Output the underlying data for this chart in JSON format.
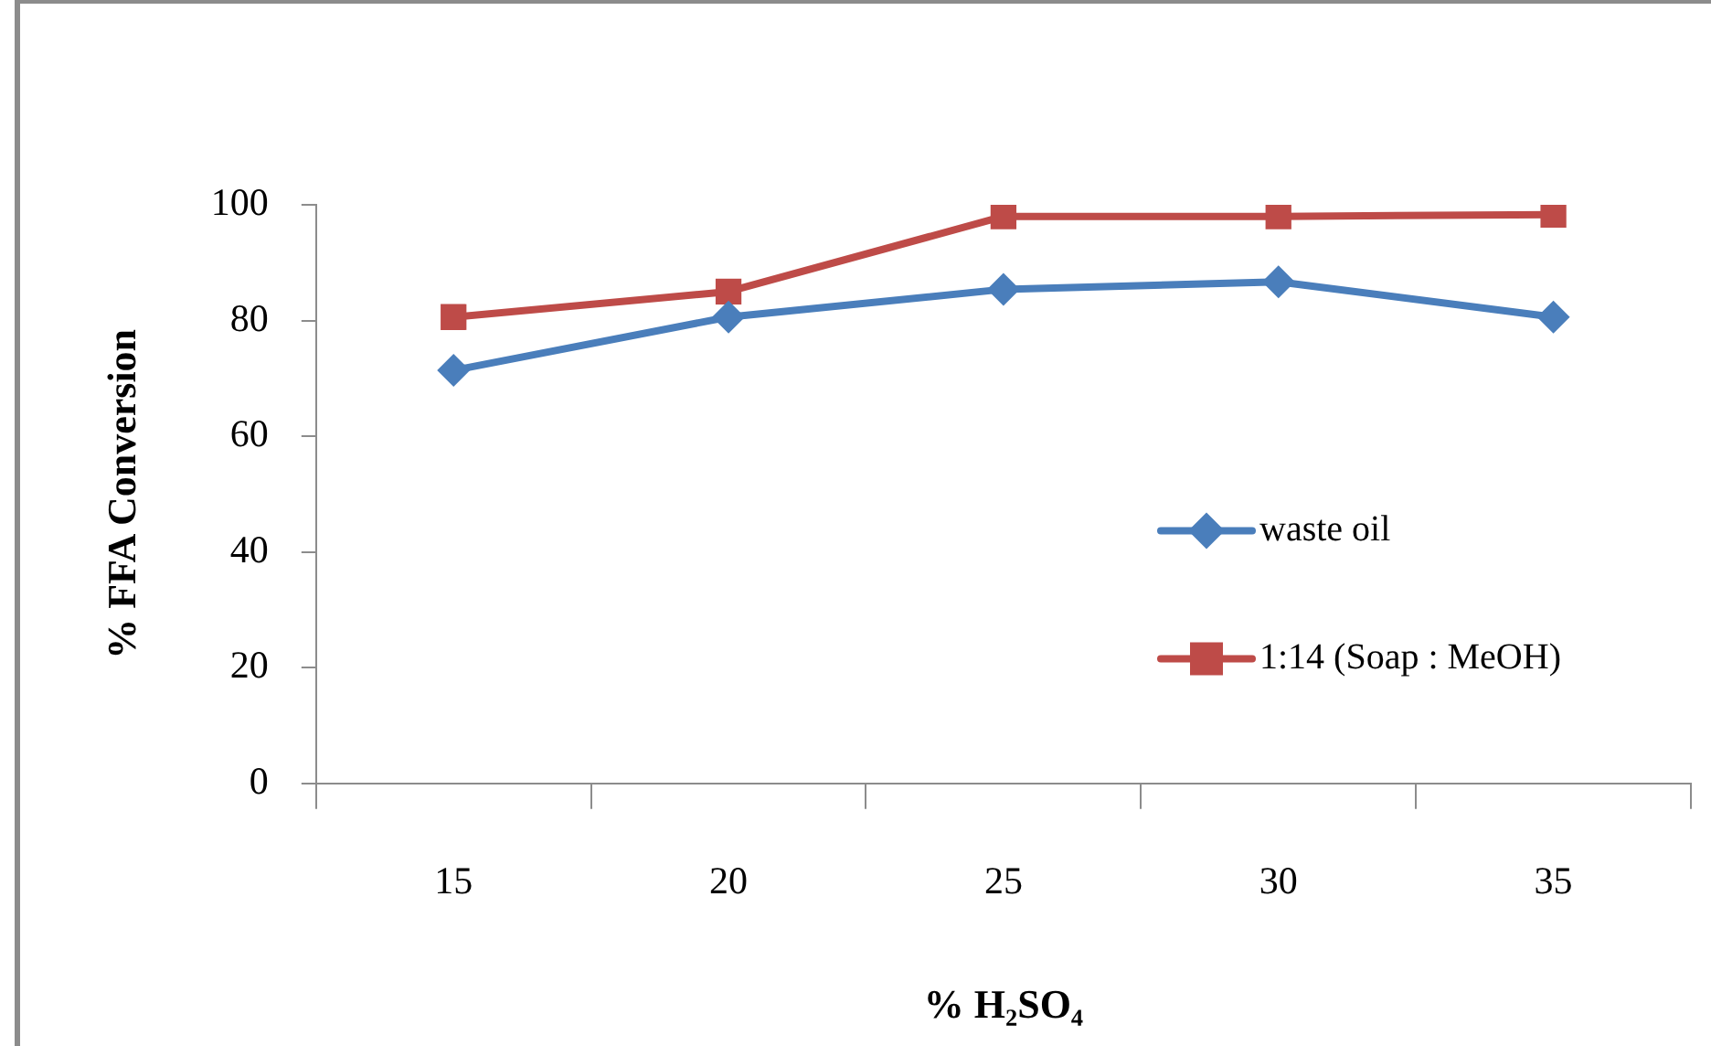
{
  "chart_data": {
    "type": "line",
    "xlabel": "% H₂SO₄",
    "ylabel": "% FFA Conversion",
    "categories": [
      "15",
      "20",
      "25",
      "30",
      "35"
    ],
    "series": [
      {
        "name": "waste oil",
        "color": "#4a7ebb",
        "marker": "diamond",
        "values": [
          71.4,
          80.6,
          85.4,
          86.7,
          80.6
        ]
      },
      {
        "name": "1:14 (Soap : MeOH)",
        "color": "#be4b48",
        "marker": "square",
        "values": [
          80.6,
          85,
          98,
          98,
          98.3
        ]
      }
    ],
    "ylim": [
      0,
      100
    ],
    "yticks": [
      0,
      20,
      40,
      60,
      80,
      100
    ],
    "grid": false,
    "legend": "right",
    "line_style": "solid"
  }
}
